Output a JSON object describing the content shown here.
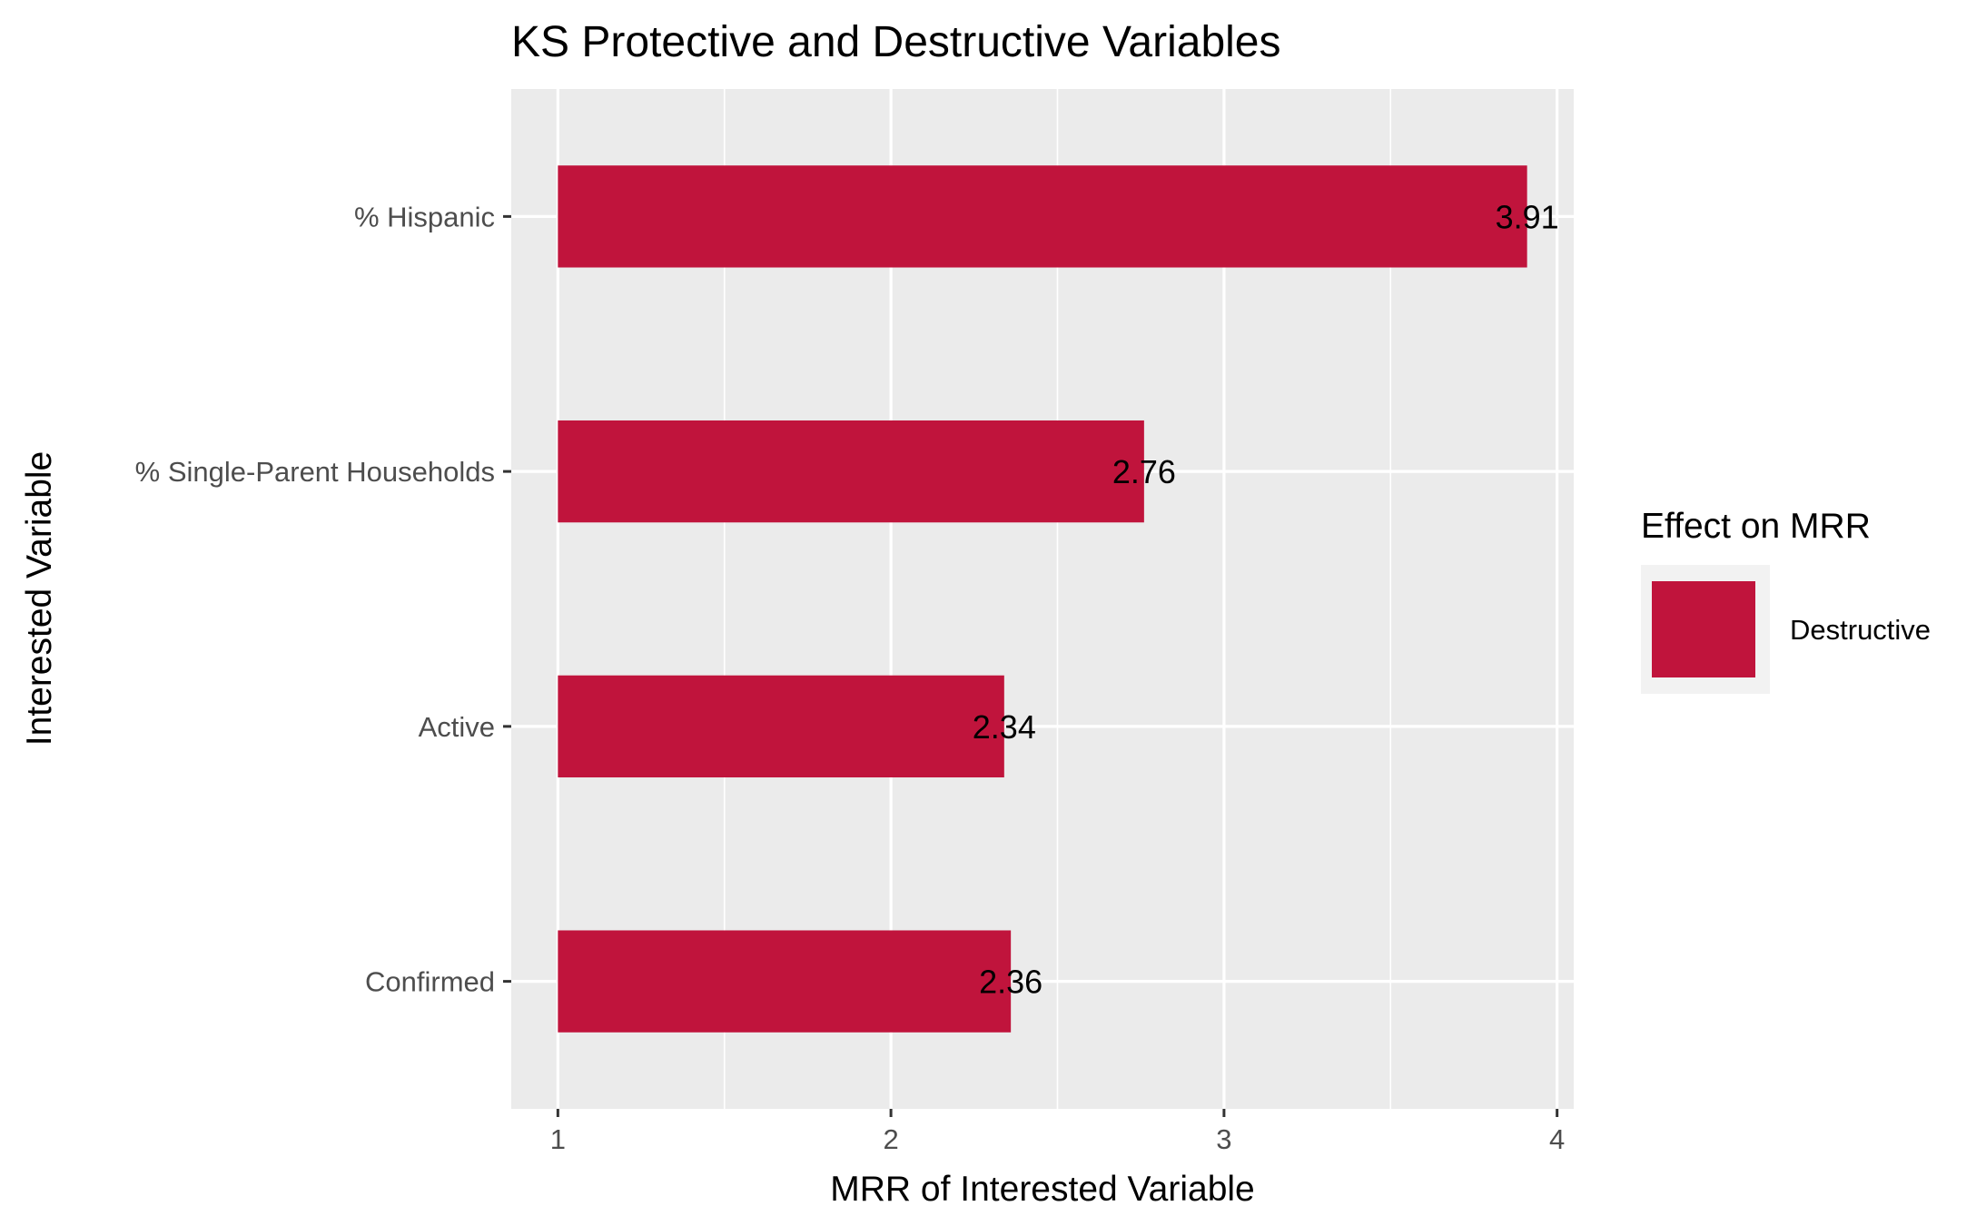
{
  "chart_data": {
    "type": "bar",
    "orientation": "horizontal",
    "title": "KS Protective and Destructive Variables",
    "xlabel": "MRR of Interested Variable",
    "ylabel": "Interested Variable",
    "categories": [
      "% Hispanic",
      "% Single-Parent Households",
      "Active",
      "Confirmed"
    ],
    "series": [
      {
        "name": "Destructive",
        "values": [
          3.91,
          2.76,
          2.34,
          2.36
        ],
        "labels": [
          "3.91",
          "2.76",
          "2.34",
          "2.36"
        ]
      }
    ],
    "xlim": [
      0.86,
      4.05
    ],
    "x_ticks": [
      1,
      2,
      3,
      4
    ],
    "x_tick_labels": [
      "1",
      "2",
      "3",
      "4"
    ],
    "bar_base": 1,
    "grid": true,
    "legend": {
      "title": "Effect on MRR",
      "placement": "right",
      "entries": [
        "Destructive"
      ]
    },
    "colors": {
      "Destructive": "#C0143C",
      "panel": "#EBEBEB",
      "grid": "#FFFFFF"
    }
  }
}
